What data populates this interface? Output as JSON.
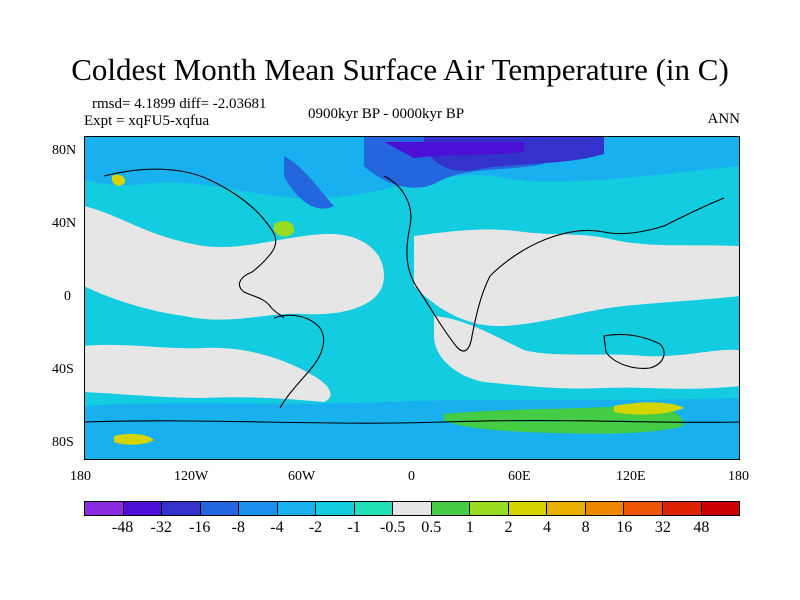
{
  "title": "Coldest Month Mean Surface Air Temperature (in C)",
  "stats": "rmsd= 4.1899 diff= -2.03681",
  "experiment": "Expt = xqFU5-xqfua",
  "period": "0900kyr BP - 0000kyr BP",
  "season": "ANN",
  "map": {
    "lat_labels": [
      "80N",
      "40N",
      "0",
      "40S",
      "80S"
    ],
    "lon_labels": [
      "180",
      "120W",
      "60W",
      "0",
      "60E",
      "120E",
      "180"
    ]
  },
  "colorbar": {
    "labels": [
      "-48",
      "-32",
      "-16",
      "-8",
      "-4",
      "-2",
      "-1",
      "-0.5",
      "0.5",
      "1",
      "2",
      "4",
      "8",
      "16",
      "32",
      "48"
    ],
    "colors": [
      "#8a2be2",
      "#4b0fd6",
      "#3333cc",
      "#2466dd",
      "#1a8ff0",
      "#19b0f0",
      "#14cce0",
      "#22e0b8",
      "#e6e6e6",
      "#44cc44",
      "#99dd22",
      "#d4d400",
      "#e8b000",
      "#ee8800",
      "#ee5500",
      "#dd2200",
      "#cc0000"
    ]
  }
}
